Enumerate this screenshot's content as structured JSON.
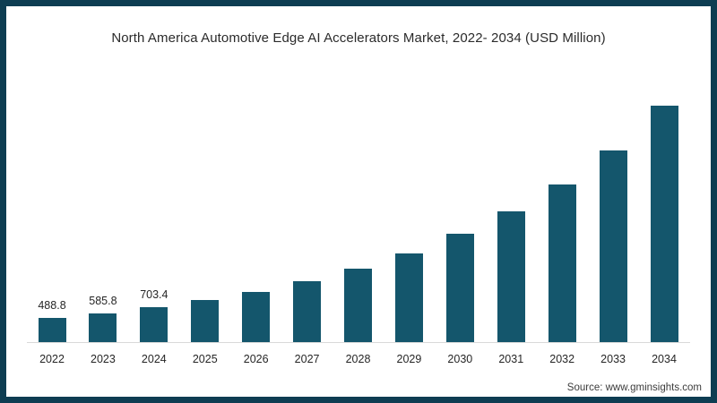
{
  "title": "North America Automotive Edge AI Accelerators Market, 2022- 2034 (USD Million)",
  "source": "Source: www.gminsights.com",
  "colors": {
    "bar": "#14566c",
    "frame_border": "#0e3d52",
    "axis_line": "#d9d9d9",
    "text": "#262626",
    "background": "#ffffff"
  },
  "chart_data": {
    "type": "bar",
    "title": "North America Automotive Edge AI Accelerators Market, 2022- 2034 (USD Million)",
    "xlabel": "",
    "ylabel": "USD Million",
    "categories": [
      "2022",
      "2023",
      "2024",
      "2025",
      "2026",
      "2027",
      "2028",
      "2029",
      "2030",
      "2031",
      "2032",
      "2033",
      "2034"
    ],
    "values": [
      488.8,
      585.8,
      703.4,
      845,
      1020,
      1240,
      1490,
      1800,
      2190,
      2640,
      3190,
      3880,
      4780
    ],
    "data_labels": [
      "488.8",
      "585.8",
      "703.4",
      "",
      "",
      "",
      "",
      "",
      "",
      "",
      "",
      "",
      ""
    ],
    "labeled_points_note": "only 2022, 2023 and 2024 bars carry visible data labels; later values estimated from bar heights",
    "ylim": [
      0,
      5000
    ],
    "grid": false,
    "legend_position": "none",
    "bar_color": "#14566c"
  }
}
